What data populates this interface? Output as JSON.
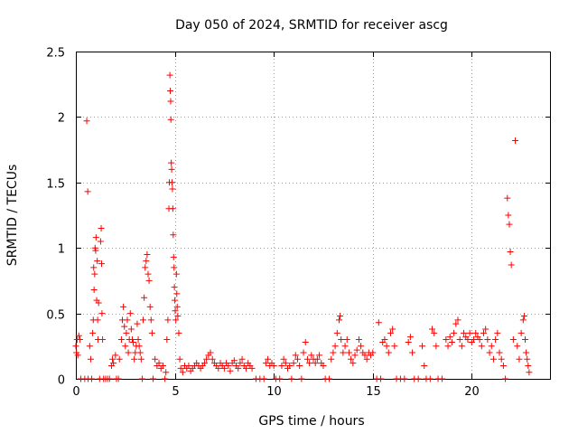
{
  "chart_data": {
    "type": "scatter",
    "title": "Day 050 of 2024, SRMTID for receiver ascg",
    "xlabel": "GPS time / hours",
    "ylabel": "SRMTID / TECUs",
    "xlim": [
      0,
      24
    ],
    "ylim": [
      0,
      2.5
    ],
    "xticks": [
      0,
      5,
      10,
      15,
      20
    ],
    "xtick_labels": [
      "0",
      "5",
      "10",
      "15",
      "20"
    ],
    "yticks": [
      0,
      0.5,
      1,
      1.5,
      2,
      2.5
    ],
    "ytick_labels": [
      "0",
      "0.5",
      "1",
      "1.5",
      "2",
      "2.5"
    ],
    "grid": true,
    "marker": "+",
    "color": "#ff0000",
    "series": [
      {
        "name": "SRMTID",
        "points": [
          [
            0.0,
            0.25
          ],
          [
            0.03,
            0.2
          ],
          [
            0.06,
            0.3
          ],
          [
            0.1,
            0.18
          ],
          [
            0.15,
            0.33
          ],
          [
            0.2,
            0.3
          ],
          [
            0.25,
            0.0
          ],
          [
            0.45,
            0.0
          ],
          [
            0.55,
            1.97
          ],
          [
            0.6,
            1.43
          ],
          [
            0.62,
            0.0
          ],
          [
            0.7,
            0.25
          ],
          [
            0.75,
            0.15
          ],
          [
            0.8,
            0.0
          ],
          [
            0.85,
            0.35
          ],
          [
            0.88,
            0.45
          ],
          [
            0.9,
            0.85
          ],
          [
            0.92,
            0.68
          ],
          [
            0.95,
            0.8
          ],
          [
            0.97,
            1.0
          ],
          [
            1.0,
            0.98
          ],
          [
            1.02,
            1.08
          ],
          [
            1.05,
            0.6
          ],
          [
            1.08,
            0.9
          ],
          [
            1.1,
            0.45
          ],
          [
            1.12,
            0.3
          ],
          [
            1.15,
            0.58
          ],
          [
            1.2,
            0.0
          ],
          [
            1.25,
            1.05
          ],
          [
            1.28,
            1.15
          ],
          [
            1.3,
            0.88
          ],
          [
            1.32,
            0.5
          ],
          [
            1.35,
            0.3
          ],
          [
            1.4,
            0.0
          ],
          [
            1.5,
            0.0
          ],
          [
            1.6,
            0.0
          ],
          [
            1.7,
            0.0
          ],
          [
            1.8,
            0.1
          ],
          [
            1.85,
            0.15
          ],
          [
            1.9,
            0.12
          ],
          [
            2.0,
            0.18
          ],
          [
            2.05,
            0.0
          ],
          [
            2.15,
            0.0
          ],
          [
            2.2,
            0.15
          ],
          [
            2.3,
            0.3
          ],
          [
            2.35,
            0.45
          ],
          [
            2.4,
            0.55
          ],
          [
            2.45,
            0.4
          ],
          [
            2.5,
            0.25
          ],
          [
            2.55,
            0.35
          ],
          [
            2.6,
            0.45
          ],
          [
            2.65,
            0.2
          ],
          [
            2.7,
            0.3
          ],
          [
            2.75,
            0.5
          ],
          [
            2.8,
            0.38
          ],
          [
            2.85,
            0.3
          ],
          [
            2.9,
            0.28
          ],
          [
            2.95,
            0.15
          ],
          [
            3.0,
            0.2
          ],
          [
            3.05,
            0.25
          ],
          [
            3.1,
            0.42
          ],
          [
            3.15,
            0.3
          ],
          [
            3.2,
            0.25
          ],
          [
            3.25,
            0.2
          ],
          [
            3.3,
            0.15
          ],
          [
            3.35,
            0.0
          ],
          [
            3.4,
            0.45
          ],
          [
            3.45,
            0.62
          ],
          [
            3.5,
            0.85
          ],
          [
            3.55,
            0.9
          ],
          [
            3.6,
            0.95
          ],
          [
            3.65,
            0.8
          ],
          [
            3.7,
            0.75
          ],
          [
            3.75,
            0.55
          ],
          [
            3.8,
            0.45
          ],
          [
            3.85,
            0.35
          ],
          [
            3.9,
            0.0
          ],
          [
            4.0,
            0.15
          ],
          [
            4.1,
            0.1
          ],
          [
            4.2,
            0.12
          ],
          [
            4.3,
            0.08
          ],
          [
            4.4,
            0.1
          ],
          [
            4.5,
            0.0
          ],
          [
            4.55,
            0.05
          ],
          [
            4.6,
            0.3
          ],
          [
            4.65,
            0.45
          ],
          [
            4.7,
            1.3
          ],
          [
            4.72,
            1.5
          ],
          [
            4.75,
            2.32
          ],
          [
            4.77,
            2.2
          ],
          [
            4.79,
            2.12
          ],
          [
            4.8,
            1.98
          ],
          [
            4.82,
            1.65
          ],
          [
            4.84,
            1.6
          ],
          [
            4.86,
            1.5
          ],
          [
            4.88,
            1.45
          ],
          [
            4.9,
            1.3
          ],
          [
            4.92,
            1.1
          ],
          [
            4.94,
            0.93
          ],
          [
            4.96,
            0.85
          ],
          [
            4.98,
            0.7
          ],
          [
            5.0,
            0.6
          ],
          [
            5.02,
            0.52
          ],
          [
            5.05,
            0.45
          ],
          [
            5.08,
            0.8
          ],
          [
            5.1,
            0.65
          ],
          [
            5.12,
            0.55
          ],
          [
            5.15,
            0.48
          ],
          [
            5.2,
            0.35
          ],
          [
            5.25,
            0.15
          ],
          [
            5.3,
            0.08
          ],
          [
            5.4,
            0.05
          ],
          [
            5.5,
            0.1
          ],
          [
            5.6,
            0.08
          ],
          [
            5.7,
            0.1
          ],
          [
            5.8,
            0.06
          ],
          [
            5.9,
            0.08
          ],
          [
            6.0,
            0.1
          ],
          [
            6.1,
            0.12
          ],
          [
            6.2,
            0.1
          ],
          [
            6.3,
            0.08
          ],
          [
            6.4,
            0.1
          ],
          [
            6.5,
            0.12
          ],
          [
            6.6,
            0.15
          ],
          [
            6.7,
            0.18
          ],
          [
            6.8,
            0.2
          ],
          [
            6.9,
            0.15
          ],
          [
            7.0,
            0.12
          ],
          [
            7.1,
            0.1
          ],
          [
            7.2,
            0.08
          ],
          [
            7.3,
            0.12
          ],
          [
            7.4,
            0.1
          ],
          [
            7.5,
            0.08
          ],
          [
            7.6,
            0.12
          ],
          [
            7.7,
            0.1
          ],
          [
            7.8,
            0.06
          ],
          [
            7.9,
            0.12
          ],
          [
            8.0,
            0.14
          ],
          [
            8.1,
            0.1
          ],
          [
            8.2,
            0.08
          ],
          [
            8.3,
            0.12
          ],
          [
            8.4,
            0.15
          ],
          [
            8.5,
            0.1
          ],
          [
            8.6,
            0.08
          ],
          [
            8.7,
            0.12
          ],
          [
            8.8,
            0.1
          ],
          [
            8.9,
            0.08
          ],
          [
            9.1,
            0.0
          ],
          [
            9.3,
            0.0
          ],
          [
            9.5,
            0.0
          ],
          [
            9.6,
            0.12
          ],
          [
            9.7,
            0.15
          ],
          [
            9.8,
            0.1
          ],
          [
            9.9,
            0.12
          ],
          [
            10.0,
            0.1
          ],
          [
            10.1,
            0.0
          ],
          [
            10.3,
            0.0
          ],
          [
            10.4,
            0.1
          ],
          [
            10.5,
            0.15
          ],
          [
            10.6,
            0.12
          ],
          [
            10.7,
            0.08
          ],
          [
            10.8,
            0.1
          ],
          [
            10.9,
            0.0
          ],
          [
            11.0,
            0.12
          ],
          [
            11.1,
            0.18
          ],
          [
            11.2,
            0.15
          ],
          [
            11.3,
            0.1
          ],
          [
            11.4,
            0.0
          ],
          [
            11.5,
            0.2
          ],
          [
            11.6,
            0.28
          ],
          [
            11.7,
            0.15
          ],
          [
            11.8,
            0.12
          ],
          [
            11.9,
            0.18
          ],
          [
            12.0,
            0.15
          ],
          [
            12.1,
            0.12
          ],
          [
            12.2,
            0.15
          ],
          [
            12.3,
            0.18
          ],
          [
            12.4,
            0.12
          ],
          [
            12.5,
            0.1
          ],
          [
            12.6,
            0.0
          ],
          [
            12.8,
            0.0
          ],
          [
            12.9,
            0.15
          ],
          [
            13.0,
            0.2
          ],
          [
            13.1,
            0.25
          ],
          [
            13.2,
            0.35
          ],
          [
            13.3,
            0.45
          ],
          [
            13.35,
            0.48
          ],
          [
            13.4,
            0.3
          ],
          [
            13.5,
            0.2
          ],
          [
            13.6,
            0.25
          ],
          [
            13.7,
            0.3
          ],
          [
            13.8,
            0.2
          ],
          [
            13.9,
            0.15
          ],
          [
            14.0,
            0.12
          ],
          [
            14.1,
            0.18
          ],
          [
            14.2,
            0.22
          ],
          [
            14.3,
            0.3
          ],
          [
            14.4,
            0.25
          ],
          [
            14.5,
            0.2
          ],
          [
            14.6,
            0.18
          ],
          [
            14.7,
            0.15
          ],
          [
            14.8,
            0.2
          ],
          [
            14.9,
            0.18
          ],
          [
            15.0,
            0.2
          ],
          [
            15.2,
            0.0
          ],
          [
            15.3,
            0.43
          ],
          [
            15.4,
            0.0
          ],
          [
            15.5,
            0.28
          ],
          [
            15.6,
            0.3
          ],
          [
            15.7,
            0.25
          ],
          [
            15.8,
            0.2
          ],
          [
            15.9,
            0.35
          ],
          [
            16.0,
            0.38
          ],
          [
            16.1,
            0.25
          ],
          [
            16.2,
            0.0
          ],
          [
            16.4,
            0.0
          ],
          [
            16.6,
            0.0
          ],
          [
            16.8,
            0.28
          ],
          [
            16.9,
            0.32
          ],
          [
            17.0,
            0.2
          ],
          [
            17.1,
            0.0
          ],
          [
            17.3,
            0.0
          ],
          [
            17.5,
            0.25
          ],
          [
            17.6,
            0.1
          ],
          [
            17.7,
            0.0
          ],
          [
            17.9,
            0.0
          ],
          [
            18.0,
            0.38
          ],
          [
            18.1,
            0.35
          ],
          [
            18.2,
            0.25
          ],
          [
            18.3,
            0.0
          ],
          [
            18.5,
            0.0
          ],
          [
            18.7,
            0.3
          ],
          [
            18.8,
            0.25
          ],
          [
            18.9,
            0.32
          ],
          [
            19.0,
            0.28
          ],
          [
            19.1,
            0.35
          ],
          [
            19.2,
            0.42
          ],
          [
            19.3,
            0.45
          ],
          [
            19.4,
            0.3
          ],
          [
            19.5,
            0.25
          ],
          [
            19.6,
            0.35
          ],
          [
            19.7,
            0.32
          ],
          [
            19.8,
            0.3
          ],
          [
            19.9,
            0.35
          ],
          [
            20.0,
            0.28
          ],
          [
            20.1,
            0.3
          ],
          [
            20.2,
            0.35
          ],
          [
            20.3,
            0.32
          ],
          [
            20.4,
            0.3
          ],
          [
            20.5,
            0.25
          ],
          [
            20.6,
            0.35
          ],
          [
            20.7,
            0.38
          ],
          [
            20.8,
            0.3
          ],
          [
            20.9,
            0.2
          ],
          [
            21.0,
            0.25
          ],
          [
            21.1,
            0.15
          ],
          [
            21.2,
            0.3
          ],
          [
            21.3,
            0.35
          ],
          [
            21.4,
            0.2
          ],
          [
            21.5,
            0.15
          ],
          [
            21.6,
            0.1
          ],
          [
            21.7,
            0.0
          ],
          [
            21.8,
            1.38
          ],
          [
            21.85,
            1.25
          ],
          [
            21.9,
            1.18
          ],
          [
            21.95,
            0.97
          ],
          [
            22.0,
            0.87
          ],
          [
            22.1,
            0.3
          ],
          [
            22.2,
            1.82
          ],
          [
            22.3,
            0.25
          ],
          [
            22.4,
            0.15
          ],
          [
            22.5,
            0.35
          ],
          [
            22.6,
            0.45
          ],
          [
            22.65,
            0.48
          ],
          [
            22.7,
            0.3
          ],
          [
            22.75,
            0.2
          ],
          [
            22.8,
            0.15
          ],
          [
            22.85,
            0.1
          ],
          [
            22.9,
            0.05
          ]
        ]
      }
    ]
  }
}
